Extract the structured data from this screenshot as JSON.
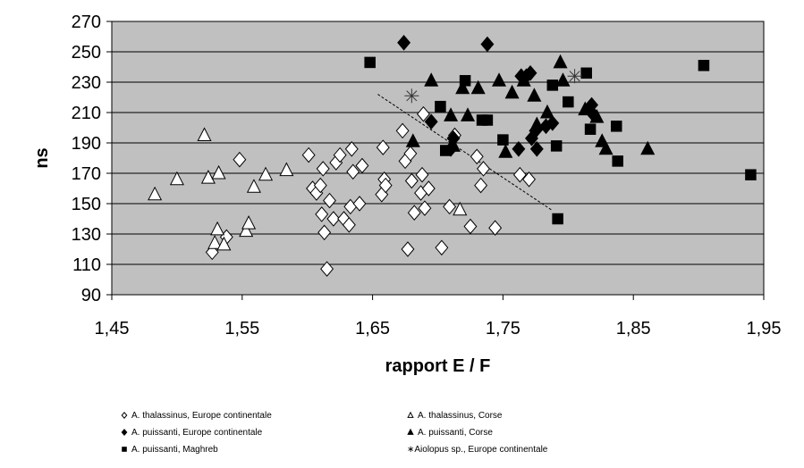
{
  "chart_data": {
    "type": "scatter",
    "xlabel": "rapport E / F",
    "ylabel": "ns",
    "xlim": [
      1.45,
      1.95
    ],
    "ylim": [
      90,
      270
    ],
    "xticks": [
      "1,45",
      "1,55",
      "1,65",
      "1,75",
      "1,85",
      "1,95"
    ],
    "yticks": [
      "90",
      "110",
      "130",
      "150",
      "170",
      "190",
      "210",
      "230",
      "250",
      "270"
    ],
    "grid": "horizontal",
    "plot_background": "#c0c0c0",
    "legend_position": "bottom",
    "series": [
      {
        "name": "A. thalassinus, Europe continentale",
        "legend_label": "A. thalassinus, Europe continentale",
        "marker": "diamond-open",
        "points": [
          [
            1.527,
            118
          ],
          [
            1.538,
            128
          ],
          [
            1.548,
            179
          ],
          [
            1.601,
            182
          ],
          [
            1.604,
            160
          ],
          [
            1.607,
            157
          ],
          [
            1.61,
            162
          ],
          [
            1.611,
            143
          ],
          [
            1.612,
            173
          ],
          [
            1.613,
            131
          ],
          [
            1.615,
            107
          ],
          [
            1.617,
            152
          ],
          [
            1.62,
            140
          ],
          [
            1.622,
            177
          ],
          [
            1.625,
            182
          ],
          [
            1.628,
            140
          ],
          [
            1.632,
            136
          ],
          [
            1.633,
            148
          ],
          [
            1.634,
            186
          ],
          [
            1.635,
            171
          ],
          [
            1.64,
            150
          ],
          [
            1.642,
            175
          ],
          [
            1.657,
            156
          ],
          [
            1.658,
            187
          ],
          [
            1.659,
            166
          ],
          [
            1.66,
            162
          ],
          [
            1.673,
            198
          ],
          [
            1.675,
            178
          ],
          [
            1.677,
            120
          ],
          [
            1.679,
            183
          ],
          [
            1.68,
            165
          ],
          [
            1.682,
            144
          ],
          [
            1.687,
            157
          ],
          [
            1.688,
            169
          ],
          [
            1.689,
            209
          ],
          [
            1.69,
            147
          ],
          [
            1.693,
            160
          ],
          [
            1.703,
            121
          ],
          [
            1.709,
            148
          ],
          [
            1.713,
            195
          ],
          [
            1.725,
            135
          ],
          [
            1.73,
            181
          ],
          [
            1.733,
            162
          ],
          [
            1.735,
            173
          ],
          [
            1.744,
            134
          ],
          [
            1.763,
            169
          ],
          [
            1.77,
            166
          ]
        ]
      },
      {
        "name": "A. thalassinus, Corse",
        "legend_label": "A. thalassinus, Corse",
        "marker": "triangle-open",
        "points": [
          [
            1.483,
            156
          ],
          [
            1.5,
            166
          ],
          [
            1.521,
            195
          ],
          [
            1.524,
            167
          ],
          [
            1.529,
            124
          ],
          [
            1.531,
            133
          ],
          [
            1.532,
            170
          ],
          [
            1.536,
            123
          ],
          [
            1.553,
            132
          ],
          [
            1.555,
            137
          ],
          [
            1.559,
            161
          ],
          [
            1.568,
            169
          ],
          [
            1.584,
            172
          ],
          [
            1.717,
            146
          ]
        ]
      },
      {
        "name": "A. puissanti, Europe continentale",
        "legend_label": "A. puissanti, Europe continentale",
        "marker": "diamond-filled",
        "points": [
          [
            1.674,
            256
          ],
          [
            1.695,
            204
          ],
          [
            1.71,
            186
          ],
          [
            1.712,
            193
          ],
          [
            1.738,
            255
          ],
          [
            1.762,
            186
          ],
          [
            1.764,
            234
          ],
          [
            1.768,
            234
          ],
          [
            1.771,
            236
          ],
          [
            1.772,
            193
          ],
          [
            1.775,
            198
          ],
          [
            1.776,
            186
          ],
          [
            1.783,
            201
          ],
          [
            1.788,
            203
          ],
          [
            1.818,
            215
          ],
          [
            1.819,
            209
          ]
        ]
      },
      {
        "name": "A. puissanti, Corse",
        "legend_label": "A. puissanti, Corse",
        "marker": "triangle-filled",
        "points": [
          [
            1.681,
            191
          ],
          [
            1.695,
            231
          ],
          [
            1.71,
            208
          ],
          [
            1.712,
            188
          ],
          [
            1.719,
            226
          ],
          [
            1.723,
            208
          ],
          [
            1.731,
            226
          ],
          [
            1.747,
            231
          ],
          [
            1.752,
            184
          ],
          [
            1.757,
            223
          ],
          [
            1.766,
            231
          ],
          [
            1.774,
            221
          ],
          [
            1.776,
            202
          ],
          [
            1.784,
            210
          ],
          [
            1.794,
            243
          ],
          [
            1.796,
            231
          ],
          [
            1.813,
            212
          ],
          [
            1.822,
            207
          ],
          [
            1.826,
            191
          ],
          [
            1.829,
            186
          ],
          [
            1.861,
            186
          ]
        ]
      },
      {
        "name": "A. puissanti, Maghreb",
        "legend_label": "A. puissanti, Maghreb",
        "marker": "square-filled",
        "points": [
          [
            1.648,
            243
          ],
          [
            1.702,
            214
          ],
          [
            1.706,
            185
          ],
          [
            1.721,
            231
          ],
          [
            1.734,
            205
          ],
          [
            1.738,
            205
          ],
          [
            1.75,
            192
          ],
          [
            1.788,
            228
          ],
          [
            1.791,
            188
          ],
          [
            1.792,
            140
          ],
          [
            1.8,
            217
          ],
          [
            1.814,
            236
          ],
          [
            1.817,
            199
          ],
          [
            1.837,
            201
          ],
          [
            1.838,
            178
          ],
          [
            1.904,
            241
          ],
          [
            1.94,
            169
          ]
        ]
      },
      {
        "name": "Aiolopus sp., Europe continentale",
        "legend_label": "∗Aiolopus sp., Europe continentale",
        "marker": "asterisk",
        "points": [
          [
            1.68,
            221
          ],
          [
            1.805,
            234
          ]
        ]
      }
    ],
    "trendline": {
      "style": "dashed",
      "from": [
        1.654,
        222
      ],
      "to": [
        1.787,
        146
      ]
    }
  }
}
